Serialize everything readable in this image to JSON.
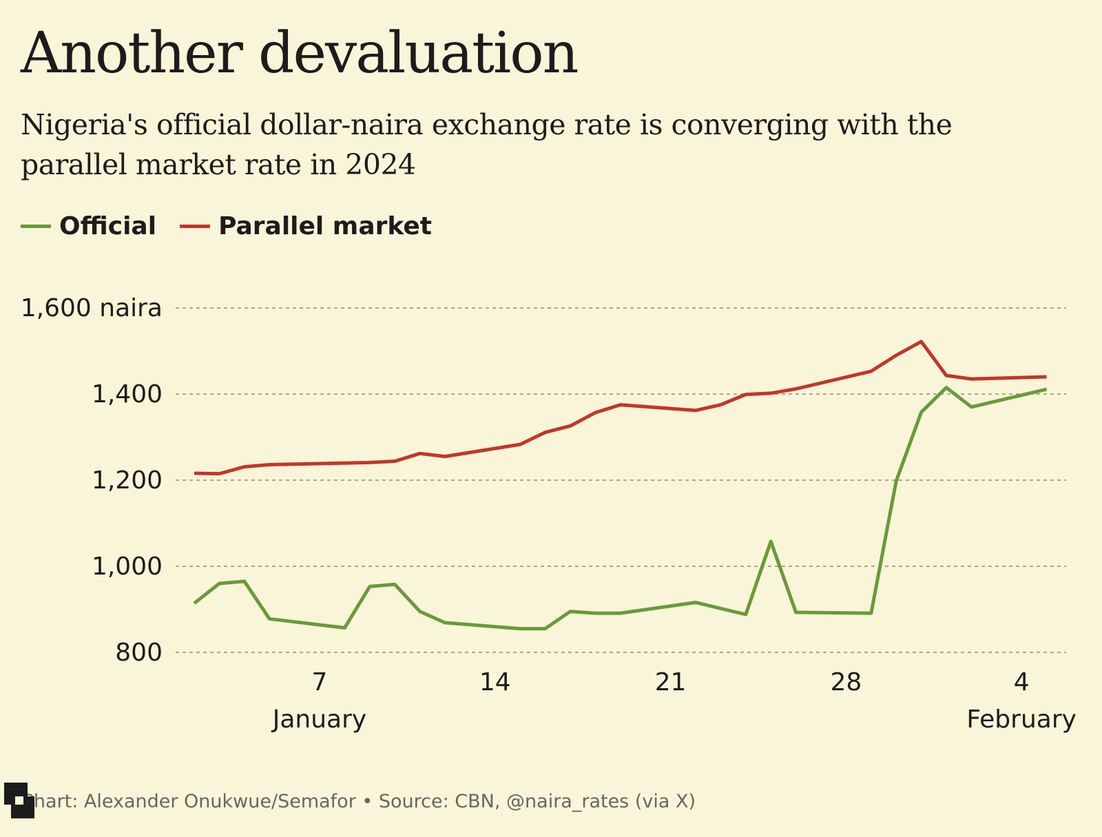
{
  "chart_data": {
    "type": "line",
    "title": "Another devaluation",
    "subtitle": "Nigeria's official dollar-naira exchange rate is converging with the parallel market rate in 2024",
    "ylabel_unit": "naira",
    "ylim": [
      800,
      1600
    ],
    "yticks": [
      {
        "value": 800,
        "label": "800"
      },
      {
        "value": 1000,
        "label": "1,000"
      },
      {
        "value": 1200,
        "label": "1,200"
      },
      {
        "value": 1400,
        "label": "1,400"
      },
      {
        "value": 1600,
        "label": "1,600 naira"
      }
    ],
    "xticks": [
      {
        "date": "2024-01-07",
        "label": "7",
        "sublabel": "January"
      },
      {
        "date": "2024-01-14",
        "label": "14",
        "sublabel": ""
      },
      {
        "date": "2024-01-21",
        "label": "21",
        "sublabel": ""
      },
      {
        "date": "2024-01-28",
        "label": "28",
        "sublabel": ""
      },
      {
        "date": "2024-02-04",
        "label": "4",
        "sublabel": "February"
      }
    ],
    "grid": "horizontal dashed",
    "legend_placement": "top-left",
    "series": [
      {
        "name": "Official",
        "color": "#6a9a3a",
        "points": [
          [
            "2024-01-02",
            914
          ],
          [
            "2024-01-03",
            960
          ],
          [
            "2024-01-04",
            965
          ],
          [
            "2024-01-05",
            878
          ],
          [
            "2024-01-08",
            857
          ],
          [
            "2024-01-09",
            953
          ],
          [
            "2024-01-10",
            958
          ],
          [
            "2024-01-11",
            895
          ],
          [
            "2024-01-12",
            869
          ],
          [
            "2024-01-15",
            855
          ],
          [
            "2024-01-16",
            855
          ],
          [
            "2024-01-17",
            895
          ],
          [
            "2024-01-18",
            891
          ],
          [
            "2024-01-19",
            891
          ],
          [
            "2024-01-22",
            916
          ],
          [
            "2024-01-24",
            888
          ],
          [
            "2024-01-25",
            1058
          ],
          [
            "2024-01-26",
            893
          ],
          [
            "2024-01-29",
            891
          ],
          [
            "2024-01-30",
            1198
          ],
          [
            "2024-01-31",
            1358
          ],
          [
            "2024-02-01",
            1415
          ],
          [
            "2024-02-02",
            1370
          ],
          [
            "2024-02-05",
            1411
          ]
        ]
      },
      {
        "name": "Parallel market",
        "color": "#c4352a",
        "points": [
          [
            "2024-01-02",
            1216
          ],
          [
            "2024-01-03",
            1215
          ],
          [
            "2024-01-04",
            1231
          ],
          [
            "2024-01-05",
            1236
          ],
          [
            "2024-01-09",
            1241
          ],
          [
            "2024-01-10",
            1244
          ],
          [
            "2024-01-11",
            1262
          ],
          [
            "2024-01-12",
            1255
          ],
          [
            "2024-01-15",
            1283
          ],
          [
            "2024-01-16",
            1311
          ],
          [
            "2024-01-17",
            1326
          ],
          [
            "2024-01-18",
            1357
          ],
          [
            "2024-01-19",
            1375
          ],
          [
            "2024-01-22",
            1362
          ],
          [
            "2024-01-23",
            1375
          ],
          [
            "2024-01-24",
            1399
          ],
          [
            "2024-01-25",
            1402
          ],
          [
            "2024-01-26",
            1412
          ],
          [
            "2024-01-29",
            1453
          ],
          [
            "2024-01-30",
            1490
          ],
          [
            "2024-01-31",
            1522
          ],
          [
            "2024-02-01",
            1443
          ],
          [
            "2024-02-02",
            1435
          ],
          [
            "2024-02-05",
            1440
          ]
        ]
      }
    ]
  },
  "footer": "Chart: Alexander Onukwue/Semafor • Source: CBN, @naira_rates (via X)",
  "logo": "S"
}
